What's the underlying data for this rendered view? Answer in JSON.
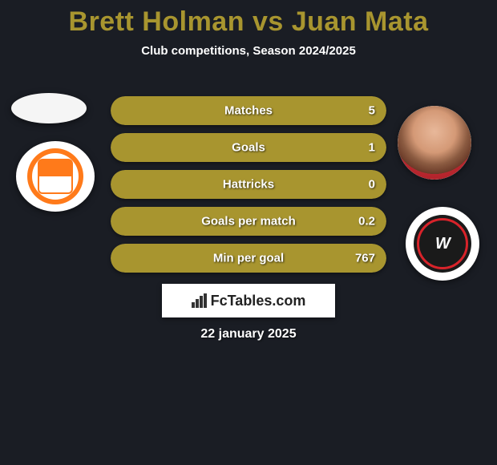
{
  "title": {
    "player1": "Brett Holman",
    "vs": "vs",
    "player2": "Juan Mata",
    "player1_color": "#a8952f",
    "vs_color": "#a8952f",
    "player2_color": "#a8952f"
  },
  "subtitle": "Club competitions, Season 2024/2025",
  "chart": {
    "bar_color_right": "#a8952f",
    "track_color": "rgba(255,255,255,0.06)",
    "rows": [
      {
        "label": "Matches",
        "value": "5",
        "fill_pct": 100
      },
      {
        "label": "Goals",
        "value": "1",
        "fill_pct": 100
      },
      {
        "label": "Hattricks",
        "value": "0",
        "fill_pct": 100
      },
      {
        "label": "Goals per match",
        "value": "0.2",
        "fill_pct": 100
      },
      {
        "label": "Min per goal",
        "value": "767",
        "fill_pct": 100
      }
    ]
  },
  "badges": {
    "left_player": "placeholder-silhouette",
    "left_club": "brisbane-roar",
    "right_player": "juan-mata-photo",
    "right_club": "western-sydney-wanderers",
    "wsw_mark": "W"
  },
  "brand": {
    "name": "FcTables.com"
  },
  "date": "22 january 2025",
  "colors": {
    "background": "#1a1d24",
    "text": "#ffffff",
    "accent": "#a8952f"
  }
}
